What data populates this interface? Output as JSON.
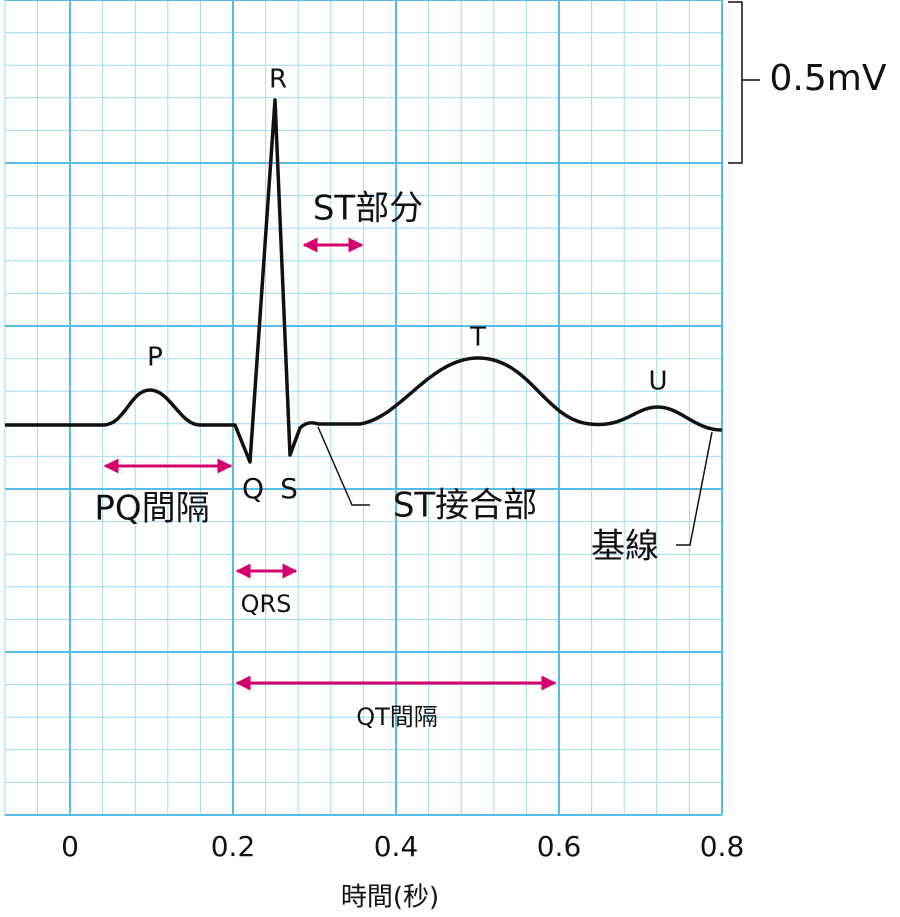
{
  "waves": {
    "p": "P",
    "q": "Q",
    "r": "R",
    "s": "S",
    "t": "T",
    "u": "U"
  },
  "intervals": {
    "st_segment": "ST部分",
    "pq_interval": "PQ間隔",
    "qrs": "QRS",
    "qt_interval": "QT間隔"
  },
  "callouts": {
    "st_junction": "ST接合部",
    "baseline": "基線"
  },
  "scale_bar": "0.5mV",
  "x_axis": {
    "ticks": [
      "0",
      "0.2",
      "0.4",
      "0.6",
      "0.8"
    ],
    "label": "時間(秒)"
  }
}
